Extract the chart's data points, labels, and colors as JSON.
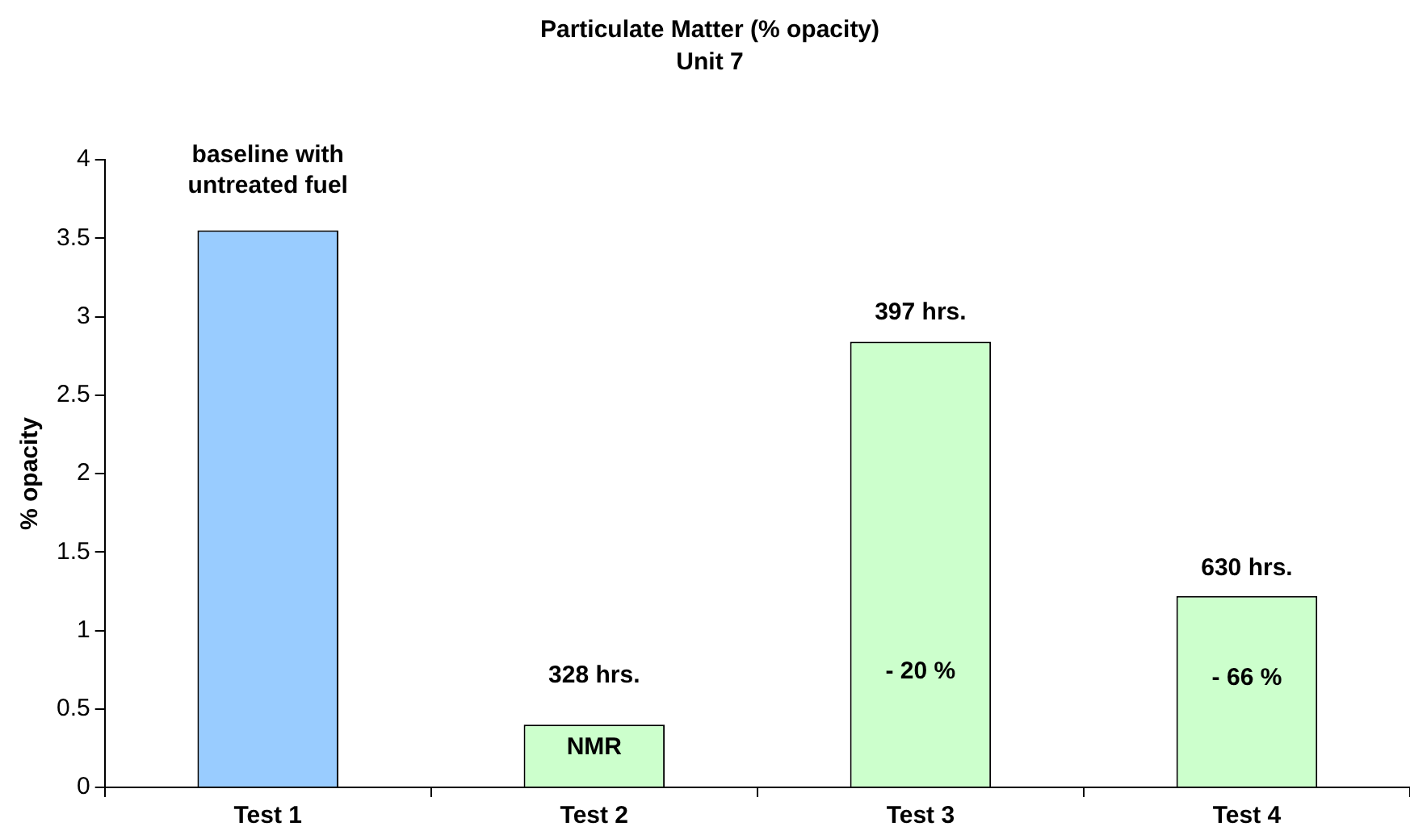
{
  "chart_data": {
    "type": "bar",
    "title": "Particulate Matter (% opacity)",
    "subtitle": "Unit 7",
    "ylabel": "% opacity",
    "categories": [
      "Test 1",
      "Test 2",
      "Test 3",
      "Test 4"
    ],
    "values": [
      3.55,
      0.4,
      2.84,
      1.22
    ],
    "colors": [
      "#99ccff",
      "#ccffcc",
      "#ccffcc",
      "#ccffcc"
    ],
    "ylim": [
      0,
      4
    ],
    "yticks": [
      0,
      0.5,
      1,
      1.5,
      2,
      2.5,
      3,
      3.5,
      4
    ],
    "grid": false,
    "legend": false,
    "annotations": [
      "baseline with\nuntreated fuel",
      "328 hrs.",
      "NMR",
      "397 hrs.",
      "- 20 %",
      "630 hrs.",
      "- 66 %"
    ]
  }
}
